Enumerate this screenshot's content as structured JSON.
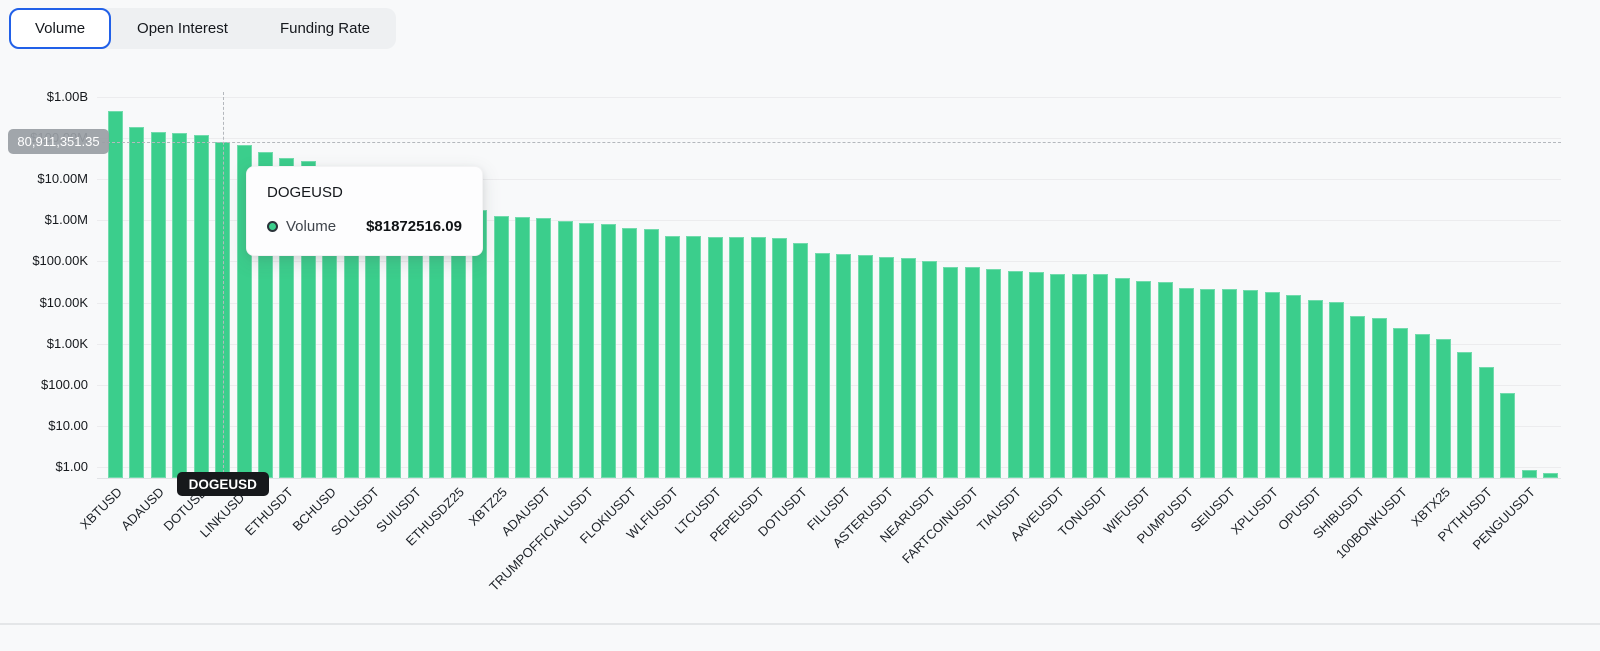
{
  "tabs": {
    "items": [
      {
        "label": "Volume",
        "active": true
      },
      {
        "label": "Open Interest",
        "active": false
      },
      {
        "label": "Funding Rate",
        "active": false
      }
    ]
  },
  "tooltip": {
    "title": "DOGEUSD",
    "series_label": "Volume",
    "value_text": "$81872516.09"
  },
  "crosshair": {
    "y_axis_badge_text": "80,911,351.35",
    "y_axis_value": 80911351.35,
    "x_axis_badge_text": "DOGEUSD",
    "hover_bar_index": 5
  },
  "chart_data": {
    "type": "bar",
    "yscale": "log",
    "ylim": [
      1,
      1000000000
    ],
    "grid": true,
    "bar_color": "#3bce8c",
    "y_tick_labels": [
      "$1.00",
      "$10.00",
      "$100.00",
      "$1.00K",
      "$10.00K",
      "$100.00K",
      "$1.00M",
      "$10.00M",
      "$100.00M",
      "$1.00B"
    ],
    "note_labeling": "x labels shown for every other bar; unlabeled bars have empty label",
    "bars": [
      {
        "label": "XBTUSD",
        "value": 460000000
      },
      {
        "label": "",
        "value": 190000000
      },
      {
        "label": "ADAUSD",
        "value": 144000000
      },
      {
        "label": "",
        "value": 132000000
      },
      {
        "label": "DOTUSD",
        "value": 117000000
      },
      {
        "label": "DOGEUSD",
        "value": 81872516.09
      },
      {
        "label": "LINKUSDT",
        "value": 68000000
      },
      {
        "label": "",
        "value": 47000000
      },
      {
        "label": "ETHUSDT",
        "value": 32000000
      },
      {
        "label": "",
        "value": 27000000
      },
      {
        "label": "BCHUSD",
        "value": 19000000
      },
      {
        "label": "",
        "value": 13500000
      },
      {
        "label": "SOLUSDT",
        "value": 9600000
      },
      {
        "label": "",
        "value": 6900000
      },
      {
        "label": "SUIUSDT",
        "value": 4900000
      },
      {
        "label": "",
        "value": 3500000
      },
      {
        "label": "ETHUSDZ25",
        "value": 2500000
      },
      {
        "label": "",
        "value": 1800000
      },
      {
        "label": "XBTZ25",
        "value": 1300000
      },
      {
        "label": "",
        "value": 1230000
      },
      {
        "label": "ADAUSDT",
        "value": 1150000
      },
      {
        "label": "",
        "value": 960000
      },
      {
        "label": "TRUMPOFFICIALUSDT",
        "value": 860000
      },
      {
        "label": "",
        "value": 810000
      },
      {
        "label": "FLOKIUSDT",
        "value": 640000
      },
      {
        "label": "",
        "value": 620000
      },
      {
        "label": "WLFIUSDT",
        "value": 420000
      },
      {
        "label": "",
        "value": 405000
      },
      {
        "label": "LTCUSDT",
        "value": 400000
      },
      {
        "label": "",
        "value": 395000
      },
      {
        "label": "PEPEUSDT",
        "value": 390000
      },
      {
        "label": "",
        "value": 380000
      },
      {
        "label": "DOTUSDT",
        "value": 275000
      },
      {
        "label": "",
        "value": 160000
      },
      {
        "label": "FILUSDT",
        "value": 150000
      },
      {
        "label": "",
        "value": 140000
      },
      {
        "label": "ASTERUSDT",
        "value": 126000
      },
      {
        "label": "",
        "value": 120000
      },
      {
        "label": "NEARUSDT",
        "value": 100000
      },
      {
        "label": "",
        "value": 74000
      },
      {
        "label": "FARTCOINUSDT",
        "value": 73000
      },
      {
        "label": "",
        "value": 64000
      },
      {
        "label": "TIAUSDT",
        "value": 59000
      },
      {
        "label": "",
        "value": 54000
      },
      {
        "label": "AAVEUSDT",
        "value": 50000
      },
      {
        "label": "",
        "value": 49500
      },
      {
        "label": "TONUSDT",
        "value": 49000
      },
      {
        "label": "",
        "value": 39000
      },
      {
        "label": "WIFUSDT",
        "value": 33000
      },
      {
        "label": "",
        "value": 32000
      },
      {
        "label": "PUMPUSDT",
        "value": 22000
      },
      {
        "label": "",
        "value": 21500
      },
      {
        "label": "SEIUSDT",
        "value": 21000
      },
      {
        "label": "",
        "value": 20500
      },
      {
        "label": "XPLUSDT",
        "value": 18000
      },
      {
        "label": "",
        "value": 15000
      },
      {
        "label": "OPUSDT",
        "value": 11500
      },
      {
        "label": "",
        "value": 10500
      },
      {
        "label": "SHIBUSDT",
        "value": 4800
      },
      {
        "label": "",
        "value": 4200
      },
      {
        "label": "100BONKUSDT",
        "value": 2400
      },
      {
        "label": "",
        "value": 1700
      },
      {
        "label": "XBTX25",
        "value": 1300
      },
      {
        "label": "",
        "value": 630
      },
      {
        "label": "PYTHUSDT",
        "value": 265
      },
      {
        "label": "",
        "value": 62
      },
      {
        "label": "PENGUUSDT",
        "value": 0.85
      },
      {
        "label": "",
        "value": 0.7
      }
    ]
  }
}
